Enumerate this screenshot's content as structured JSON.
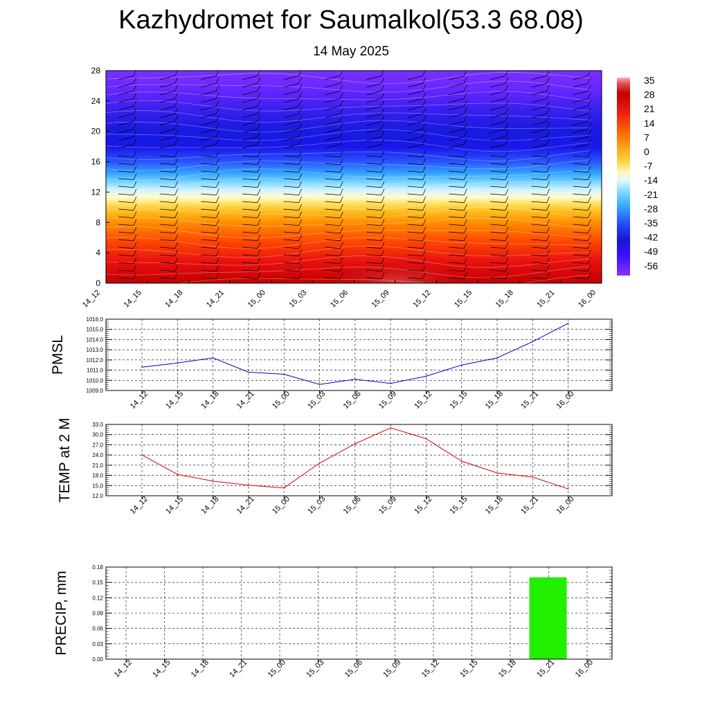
{
  "header": {
    "title": "Kazhydromet for Saumalkol(53.3 68.08)",
    "date": "14 May 2025"
  },
  "chart_data": [
    {
      "type": "heatmap",
      "description_kind": "time-height cross-section with wind barbs",
      "x_ticks": [
        "14_12",
        "14_15",
        "14_18",
        "14_21",
        "15_00",
        "15_03",
        "15_06",
        "15_09",
        "15_12",
        "15_15",
        "15_18",
        "15_21",
        "16_00"
      ],
      "y_ticks": [
        "0",
        "4",
        "8",
        "12",
        "16",
        "20",
        "24",
        "28"
      ],
      "ylim": [
        0,
        28
      ],
      "colorbar_labels": [
        "35",
        "28",
        "21",
        "14",
        "7",
        "0",
        "-7",
        "-14",
        "-21",
        "-28",
        "-35",
        "-42",
        "-49",
        "-56"
      ],
      "colorbar_range": [
        -63,
        42
      ],
      "colors": [
        "#7f00ff",
        "#4000ff",
        "#1010e0",
        "#2848ff",
        "#30a0ff",
        "#60d0ff",
        "#c8f0ff",
        "#fff8c0",
        "#ffe060",
        "#ffb020",
        "#ff7000",
        "#ff3000",
        "#e01010",
        "#b00000",
        "#ff8080"
      ]
    },
    {
      "type": "line",
      "ylabel": "PMSL",
      "categories": [
        "14_12",
        "14_15",
        "14_18",
        "14_21",
        "15_00",
        "15_03",
        "15_06",
        "15_09",
        "15_12",
        "15_15",
        "15_18",
        "15_21",
        "16_00"
      ],
      "series": [
        {
          "values": [
            1011.3,
            1011.7,
            1012.2,
            1010.8,
            1010.6,
            1009.6,
            1010.1,
            1009.7,
            1010.4,
            1011.5,
            1012.2,
            1013.8,
            1015.6
          ],
          "color": "#0000cc"
        }
      ],
      "y_ticks": [
        "1009.0",
        "1010.0",
        "1011.0",
        "1012.0",
        "1013.0",
        "1014.0",
        "1015.0",
        "1016.0"
      ],
      "ylim": [
        1009,
        1016
      ],
      "grid": true
    },
    {
      "type": "line",
      "ylabel": "TEMP at 2 M",
      "categories": [
        "14_12",
        "14_15",
        "14_18",
        "14_21",
        "15_00",
        "15_03",
        "15_06",
        "15_09",
        "15_12",
        "15_15",
        "15_18",
        "15_21",
        "16_00"
      ],
      "series": [
        {
          "values": [
            24.0,
            18.3,
            16.3,
            15.1,
            14.3,
            21.6,
            27.3,
            32.0,
            28.8,
            22.2,
            18.7,
            17.5,
            14.0
          ],
          "color": "#dd0000"
        }
      ],
      "y_ticks": [
        "12.0",
        "15.0",
        "18.0",
        "21.0",
        "24.0",
        "27.0",
        "30.0",
        "33.0"
      ],
      "ylim": [
        12,
        33
      ],
      "grid": true
    },
    {
      "type": "bar",
      "ylabel": "PRECIP, mm",
      "categories": [
        "14_12",
        "14_15",
        "14_18",
        "14_21",
        "15_00",
        "15_03",
        "15_06",
        "15_09",
        "15_12",
        "15_15",
        "15_18",
        "15_21",
        "16_00"
      ],
      "series": [
        {
          "values": [
            0,
            0,
            0,
            0,
            0,
            0,
            0,
            0,
            0,
            0,
            0,
            0.16,
            0
          ],
          "color": "#22ee00"
        }
      ],
      "y_ticks": [
        "0.00",
        "0.03",
        "0.06",
        "0.09",
        "0.12",
        "0.15",
        "0.18"
      ],
      "ylim": [
        0,
        0.18
      ],
      "grid": true
    }
  ]
}
